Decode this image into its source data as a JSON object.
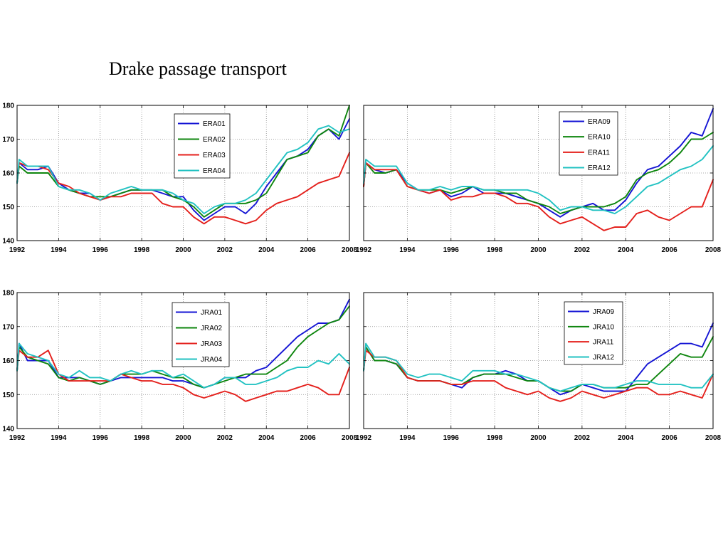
{
  "page": {
    "title": "Drake passage transport"
  },
  "chart_data": [
    {
      "type": "line",
      "xlim": [
        1992,
        2008
      ],
      "ylim": [
        140,
        180
      ],
      "xticks": [
        1992,
        1994,
        1996,
        1998,
        2000,
        2002,
        2004,
        2006,
        2008
      ],
      "yticks": [
        140,
        150,
        160,
        170,
        180
      ],
      "show_ytick_labels": true,
      "grid": true,
      "legend": "top-center",
      "x": [
        1992,
        1992.1,
        1992.5,
        1993,
        1993.5,
        1994,
        1994.5,
        1995,
        1995.5,
        1996,
        1996.5,
        1997,
        1997.5,
        1998,
        1998.5,
        1999,
        1999.5,
        2000,
        2000.5,
        2001,
        2001.5,
        2002,
        2002.5,
        2003,
        2003.5,
        2004,
        2004.5,
        2005,
        2005.5,
        2006,
        2006.5,
        2007,
        2007.5,
        2008
      ],
      "series": [
        {
          "name": "ERA01",
          "color": "#1414d4",
          "values": [
            157,
            163,
            161,
            161,
            162,
            157,
            155,
            154,
            154,
            152,
            153,
            154,
            155,
            155,
            155,
            154,
            153,
            153,
            149,
            146,
            148,
            150,
            150,
            148,
            151,
            156,
            160,
            164,
            165,
            167,
            171,
            173,
            170,
            176
          ]
        },
        {
          "name": "ERA02",
          "color": "#0e860e",
          "values": [
            157,
            162,
            160,
            160,
            160,
            156,
            155,
            154,
            153,
            153,
            153,
            154,
            155,
            155,
            155,
            155,
            153,
            152,
            150,
            147,
            149,
            151,
            151,
            151,
            152,
            154,
            159,
            164,
            165,
            166,
            171,
            173,
            171,
            180
          ]
        },
        {
          "name": "ERA03",
          "color": "#e4201c",
          "values": [
            157,
            163,
            162,
            162,
            161,
            157,
            156,
            154,
            153,
            152,
            153,
            153,
            154,
            154,
            154,
            151,
            150,
            150,
            147,
            145,
            147,
            147,
            146,
            145,
            146,
            149,
            151,
            152,
            153,
            155,
            157,
            158,
            159,
            166
          ]
        },
        {
          "name": "ERA04",
          "color": "#22c2c2",
          "values": [
            157,
            164,
            162,
            162,
            162,
            156,
            155,
            155,
            154,
            152,
            154,
            155,
            156,
            155,
            155,
            155,
            154,
            152,
            151,
            148,
            150,
            151,
            151,
            152,
            154,
            158,
            162,
            166,
            167,
            169,
            173,
            174,
            172,
            173
          ]
        }
      ]
    },
    {
      "type": "line",
      "xlim": [
        1992,
        2008
      ],
      "ylim": [
        140,
        180
      ],
      "xticks": [
        1992,
        1994,
        1996,
        1998,
        2000,
        2002,
        2004,
        2006,
        2008
      ],
      "yticks": [
        140,
        150,
        160,
        170,
        180
      ],
      "show_ytick_labels": false,
      "grid": true,
      "legend": "top-right",
      "x": [
        1992,
        1992.1,
        1992.5,
        1993,
        1993.5,
        1994,
        1994.5,
        1995,
        1995.5,
        1996,
        1996.5,
        1997,
        1997.5,
        1998,
        1998.5,
        1999,
        1999.5,
        2000,
        2000.5,
        2001,
        2001.5,
        2002,
        2002.5,
        2003,
        2003.5,
        2004,
        2004.5,
        2005,
        2005.5,
        2006,
        2006.5,
        2007,
        2007.5,
        2008
      ],
      "series": [
        {
          "name": "ERA09",
          "color": "#1414d4",
          "values": [
            156,
            163,
            161,
            160,
            161,
            157,
            155,
            154,
            155,
            153,
            154,
            156,
            154,
            154,
            154,
            153,
            152,
            151,
            149,
            147,
            149,
            150,
            151,
            149,
            149,
            152,
            157,
            161,
            162,
            165,
            168,
            172,
            171,
            179
          ]
        },
        {
          "name": "ERA10",
          "color": "#0e860e",
          "values": [
            156,
            163,
            160,
            160,
            161,
            156,
            155,
            155,
            155,
            154,
            155,
            156,
            155,
            155,
            154,
            154,
            152,
            151,
            150,
            148,
            149,
            150,
            150,
            150,
            151,
            153,
            158,
            160,
            161,
            163,
            166,
            170,
            170,
            172
          ]
        },
        {
          "name": "ERA11",
          "color": "#e4201c",
          "values": [
            156,
            163,
            161,
            161,
            161,
            156,
            155,
            154,
            155,
            152,
            153,
            153,
            154,
            154,
            153,
            151,
            151,
            150,
            147,
            145,
            146,
            147,
            145,
            143,
            144,
            144,
            148,
            149,
            147,
            146,
            148,
            150,
            150,
            158
          ]
        },
        {
          "name": "ERA12",
          "color": "#22c2c2",
          "values": [
            157,
            164,
            162,
            162,
            162,
            157,
            155,
            155,
            156,
            155,
            156,
            156,
            155,
            155,
            155,
            155,
            155,
            154,
            152,
            149,
            150,
            150,
            149,
            149,
            148,
            150,
            153,
            156,
            157,
            159,
            161,
            162,
            164,
            168
          ]
        }
      ]
    },
    {
      "type": "line",
      "xlim": [
        1992,
        2008
      ],
      "ylim": [
        140,
        180
      ],
      "xticks": [
        1992,
        1994,
        1996,
        1998,
        2000,
        2002,
        2004,
        2006,
        2008
      ],
      "yticks": [
        140,
        150,
        160,
        170,
        180
      ],
      "show_ytick_labels": true,
      "grid": true,
      "legend": "top-center",
      "x": [
        1992,
        1992.1,
        1992.5,
        1993,
        1993.5,
        1994,
        1994.5,
        1995,
        1995.5,
        1996,
        1996.5,
        1997,
        1997.5,
        1998,
        1998.5,
        1999,
        1999.5,
        2000,
        2000.5,
        2001,
        2001.5,
        2002,
        2002.5,
        2003,
        2003.5,
        2004,
        2004.5,
        2005,
        2005.5,
        2006,
        2006.5,
        2007,
        2007.5,
        2008
      ],
      "series": [
        {
          "name": "JRA01",
          "color": "#1414d4",
          "values": [
            157,
            165,
            160,
            160,
            160,
            155,
            155,
            155,
            154,
            153,
            154,
            155,
            155,
            155,
            155,
            155,
            154,
            154,
            153,
            152,
            153,
            155,
            155,
            155,
            157,
            158,
            161,
            164,
            167,
            169,
            171,
            171,
            172,
            178
          ]
        },
        {
          "name": "JRA02",
          "color": "#0e860e",
          "values": [
            157,
            164,
            161,
            160,
            159,
            155,
            154,
            155,
            154,
            153,
            154,
            156,
            156,
            156,
            157,
            156,
            155,
            155,
            153,
            152,
            153,
            154,
            155,
            156,
            156,
            156,
            158,
            160,
            164,
            167,
            169,
            171,
            172,
            176
          ]
        },
        {
          "name": "JRA03",
          "color": "#e4201c",
          "values": [
            157,
            163,
            161,
            161,
            163,
            156,
            154,
            154,
            154,
            154,
            154,
            156,
            155,
            154,
            154,
            153,
            153,
            152,
            150,
            149,
            150,
            151,
            150,
            148,
            149,
            150,
            151,
            151,
            152,
            153,
            152,
            150,
            150,
            158
          ]
        },
        {
          "name": "JRA04",
          "color": "#22c2c2",
          "values": [
            157,
            165,
            162,
            161,
            160,
            156,
            155,
            157,
            155,
            155,
            154,
            156,
            157,
            156,
            157,
            157,
            155,
            156,
            154,
            152,
            153,
            155,
            155,
            153,
            153,
            154,
            155,
            157,
            158,
            158,
            160,
            159,
            162,
            159
          ]
        }
      ]
    },
    {
      "type": "line",
      "xlim": [
        1992,
        2008
      ],
      "ylim": [
        140,
        180
      ],
      "xticks": [
        1992,
        1994,
        1996,
        1998,
        2000,
        2002,
        2004,
        2006,
        2008
      ],
      "yticks": [
        140,
        150,
        160,
        170,
        180
      ],
      "show_ytick_labels": false,
      "grid": true,
      "legend": "top-right",
      "x": [
        1992,
        1992.1,
        1992.5,
        1993,
        1993.5,
        1994,
        1994.5,
        1995,
        1995.5,
        1996,
        1996.5,
        1997,
        1997.5,
        1998,
        1998.5,
        1999,
        1999.5,
        2000,
        2000.5,
        2001,
        2001.5,
        2002,
        2002.5,
        2003,
        2003.5,
        2004,
        2004.5,
        2005,
        2005.5,
        2006,
        2006.5,
        2007,
        2007.5,
        2008
      ],
      "series": [
        {
          "name": "JRA09",
          "color": "#1414d4",
          "values": [
            157,
            164,
            160,
            160,
            159,
            155,
            154,
            154,
            154,
            153,
            152,
            155,
            156,
            156,
            157,
            156,
            154,
            154,
            152,
            150,
            151,
            153,
            152,
            151,
            151,
            151,
            155,
            159,
            161,
            163,
            165,
            165,
            164,
            171
          ]
        },
        {
          "name": "JRA10",
          "color": "#0e860e",
          "values": [
            157,
            164,
            160,
            160,
            159,
            155,
            154,
            154,
            154,
            153,
            153,
            155,
            156,
            156,
            156,
            155,
            154,
            154,
            152,
            151,
            151,
            153,
            153,
            152,
            152,
            152,
            153,
            153,
            156,
            159,
            162,
            161,
            161,
            167
          ]
        },
        {
          "name": "JRA11",
          "color": "#e4201c",
          "values": [
            157,
            163,
            161,
            161,
            160,
            155,
            154,
            154,
            154,
            153,
            153,
            154,
            154,
            154,
            152,
            151,
            150,
            151,
            149,
            148,
            149,
            151,
            150,
            149,
            150,
            151,
            152,
            152,
            150,
            150,
            151,
            150,
            149,
            156
          ]
        },
        {
          "name": "JRA12",
          "color": "#22c2c2",
          "values": [
            157,
            165,
            161,
            161,
            160,
            156,
            155,
            156,
            156,
            155,
            154,
            157,
            157,
            157,
            156,
            156,
            155,
            154,
            152,
            151,
            152,
            153,
            153,
            152,
            152,
            153,
            154,
            154,
            153,
            153,
            153,
            152,
            152,
            156
          ]
        }
      ]
    }
  ]
}
